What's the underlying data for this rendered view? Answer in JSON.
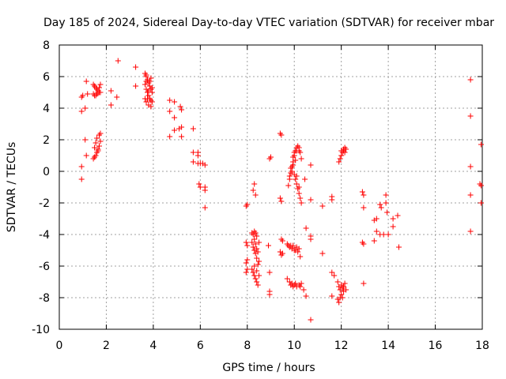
{
  "chart_data": {
    "type": "scatter",
    "title": "Day 185 of 2024, Sidereal Day-to-day VTEC variation (SDTVAR) for receiver mbar",
    "xlabel": "GPS time / hours",
    "ylabel": "SDTVAR / TECUs",
    "xlim": [
      0,
      18
    ],
    "ylim": [
      -10,
      8
    ],
    "xticks": [
      0,
      2,
      4,
      6,
      8,
      10,
      12,
      14,
      16,
      18
    ],
    "yticks": [
      -10,
      -8,
      -6,
      -4,
      -2,
      0,
      2,
      4,
      6,
      8
    ],
    "xtick_labels": [
      "0",
      "2",
      "4",
      "6",
      "8",
      "10",
      "12",
      "14",
      "16",
      "18"
    ],
    "ytick_labels": [
      "-10",
      "-8",
      "-6",
      "-4",
      "-2",
      "0",
      "2",
      "4",
      "6",
      "8"
    ],
    "grid": true,
    "marker": "+",
    "color": "#ff0000",
    "series": [
      {
        "name": "SDTVAR",
        "points": [
          [
            0.95,
            4.7
          ],
          [
            1.0,
            4.8
          ],
          [
            1.2,
            4.9
          ],
          [
            0.95,
            3.8
          ],
          [
            1.1,
            4.0
          ],
          [
            1.15,
            5.7
          ],
          [
            0.95,
            0.3
          ],
          [
            0.95,
            -0.5
          ],
          [
            1.1,
            2.0
          ],
          [
            1.15,
            1.0
          ],
          [
            1.45,
            5.5
          ],
          [
            1.5,
            5.4
          ],
          [
            1.55,
            5.3
          ],
          [
            1.6,
            5.2
          ],
          [
            1.65,
            5.1
          ],
          [
            1.7,
            5.0
          ],
          [
            1.75,
            5.0
          ],
          [
            1.45,
            4.9
          ],
          [
            1.5,
            4.8
          ],
          [
            1.55,
            4.8
          ],
          [
            1.6,
            4.9
          ],
          [
            1.65,
            5.0
          ],
          [
            1.7,
            5.3
          ],
          [
            1.75,
            5.5
          ],
          [
            1.45,
            0.8
          ],
          [
            1.5,
            0.9
          ],
          [
            1.55,
            1.0
          ],
          [
            1.6,
            1.2
          ],
          [
            1.65,
            1.4
          ],
          [
            1.7,
            1.6
          ],
          [
            1.75,
            1.9
          ],
          [
            1.5,
            1.5
          ],
          [
            1.55,
            1.8
          ],
          [
            1.6,
            2.1
          ],
          [
            1.7,
            2.3
          ],
          [
            1.75,
            2.4
          ],
          [
            1.65,
            1.3
          ],
          [
            2.2,
            5.1
          ],
          [
            2.2,
            4.2
          ],
          [
            2.45,
            4.7
          ],
          [
            2.5,
            7.0
          ],
          [
            3.25,
            5.4
          ],
          [
            3.25,
            6.6
          ],
          [
            3.65,
            6.2
          ],
          [
            3.7,
            6.0
          ],
          [
            3.75,
            5.8
          ],
          [
            3.8,
            5.6
          ],
          [
            3.85,
            5.4
          ],
          [
            3.9,
            5.2
          ],
          [
            3.95,
            5.0
          ],
          [
            3.65,
            5.5
          ],
          [
            3.7,
            5.2
          ],
          [
            3.75,
            5.0
          ],
          [
            3.8,
            4.8
          ],
          [
            3.85,
            4.6
          ],
          [
            3.9,
            4.5
          ],
          [
            3.95,
            4.4
          ],
          [
            3.7,
            4.4
          ],
          [
            3.75,
            4.6
          ],
          [
            3.8,
            5.1
          ],
          [
            3.85,
            5.7
          ],
          [
            3.9,
            5.9
          ],
          [
            3.95,
            5.3
          ],
          [
            3.7,
            6.1
          ],
          [
            3.65,
            4.6
          ],
          [
            3.8,
            4.2
          ],
          [
            3.9,
            4.1
          ],
          [
            3.7,
            5.7
          ],
          [
            4.7,
            4.5
          ],
          [
            4.9,
            4.4
          ],
          [
            4.7,
            3.8
          ],
          [
            4.9,
            3.4
          ],
          [
            4.7,
            2.2
          ],
          [
            4.9,
            2.6
          ],
          [
            5.1,
            2.7
          ],
          [
            5.2,
            2.8
          ],
          [
            5.2,
            2.2
          ],
          [
            5.15,
            4.1
          ],
          [
            5.2,
            3.9
          ],
          [
            5.7,
            2.7
          ],
          [
            5.7,
            1.2
          ],
          [
            5.7,
            0.6
          ],
          [
            5.9,
            1.0
          ],
          [
            5.9,
            0.5
          ],
          [
            6.0,
            0.5
          ],
          [
            6.1,
            0.5
          ],
          [
            6.2,
            0.4
          ],
          [
            5.9,
            1.2
          ],
          [
            5.95,
            -0.8
          ],
          [
            6.0,
            -1.0
          ],
          [
            6.2,
            -1.2
          ],
          [
            6.2,
            -1.0
          ],
          [
            6.2,
            -2.3
          ],
          [
            7.95,
            -2.2
          ],
          [
            8.0,
            -2.1
          ],
          [
            7.95,
            -4.5
          ],
          [
            8.0,
            -4.7
          ],
          [
            7.95,
            -5.8
          ],
          [
            8.0,
            -6.2
          ],
          [
            7.95,
            -6.4
          ],
          [
            8.0,
            -5.6
          ],
          [
            8.2,
            -3.9
          ],
          [
            8.25,
            -4.0
          ],
          [
            8.3,
            -3.8
          ],
          [
            8.35,
            -3.9
          ],
          [
            8.4,
            -4.1
          ],
          [
            8.2,
            -4.5
          ],
          [
            8.25,
            -4.8
          ],
          [
            8.3,
            -5.0
          ],
          [
            8.35,
            -5.2
          ],
          [
            8.4,
            -5.5
          ],
          [
            8.45,
            -5.9
          ],
          [
            8.2,
            -6.2
          ],
          [
            8.25,
            -6.4
          ],
          [
            8.3,
            -6.6
          ],
          [
            8.35,
            -6.8
          ],
          [
            8.4,
            -7.0
          ],
          [
            8.45,
            -7.2
          ],
          [
            8.3,
            -4.3
          ],
          [
            8.35,
            -4.6
          ],
          [
            8.4,
            -4.9
          ],
          [
            8.45,
            -5.1
          ],
          [
            8.3,
            -6.0
          ],
          [
            8.4,
            -6.3
          ],
          [
            8.5,
            -4.5
          ],
          [
            8.5,
            -5.7
          ],
          [
            8.5,
            -6.6
          ],
          [
            8.25,
            -1.2
          ],
          [
            8.3,
            -0.8
          ],
          [
            8.35,
            -1.5
          ],
          [
            8.9,
            -4.7
          ],
          [
            8.95,
            -6.4
          ],
          [
            8.95,
            -7.6
          ],
          [
            8.95,
            -7.8
          ],
          [
            8.95,
            0.8
          ],
          [
            9.0,
            0.9
          ],
          [
            9.4,
            2.4
          ],
          [
            9.45,
            2.3
          ],
          [
            9.4,
            -1.7
          ],
          [
            9.45,
            -1.9
          ],
          [
            9.45,
            -4.3
          ],
          [
            9.5,
            -4.4
          ],
          [
            9.4,
            -5.1
          ],
          [
            9.5,
            -5.2
          ],
          [
            9.45,
            -5.3
          ],
          [
            9.7,
            -4.6
          ],
          [
            9.8,
            -4.8
          ],
          [
            9.9,
            -4.9
          ],
          [
            10.0,
            -5.0
          ],
          [
            10.1,
            -4.8
          ],
          [
            10.2,
            -4.9
          ],
          [
            9.75,
            -4.7
          ],
          [
            9.85,
            -4.7
          ],
          [
            9.95,
            -4.7
          ],
          [
            10.05,
            -5.0
          ],
          [
            10.15,
            -5.1
          ],
          [
            10.25,
            -5.4
          ],
          [
            9.7,
            -6.8
          ],
          [
            9.8,
            -7.0
          ],
          [
            9.9,
            -7.1
          ],
          [
            10.0,
            -7.2
          ],
          [
            10.1,
            -7.3
          ],
          [
            10.2,
            -7.2
          ],
          [
            10.3,
            -7.1
          ],
          [
            10.4,
            -7.5
          ],
          [
            9.85,
            -7.2
          ],
          [
            9.95,
            -7.3
          ],
          [
            10.05,
            -7.1
          ],
          [
            10.25,
            -7.3
          ],
          [
            9.75,
            -0.9
          ],
          [
            9.8,
            -0.5
          ],
          [
            9.85,
            -0.1
          ],
          [
            9.9,
            0.3
          ],
          [
            9.95,
            0.6
          ],
          [
            10.0,
            1.0
          ],
          [
            10.05,
            1.3
          ],
          [
            10.1,
            1.5
          ],
          [
            10.15,
            1.6
          ],
          [
            10.2,
            1.5
          ],
          [
            10.25,
            1.2
          ],
          [
            10.3,
            0.8
          ],
          [
            9.8,
            -0.3
          ],
          [
            9.85,
            0.2
          ],
          [
            9.95,
            0.9
          ],
          [
            10.0,
            1.2
          ],
          [
            10.1,
            1.3
          ],
          [
            10.2,
            1.3
          ],
          [
            9.9,
            0.0
          ],
          [
            10.0,
            -0.2
          ],
          [
            10.05,
            -0.5
          ],
          [
            10.1,
            -0.8
          ],
          [
            10.15,
            -1.1
          ],
          [
            10.2,
            -1.4
          ],
          [
            10.25,
            -1.7
          ],
          [
            10.3,
            -2.0
          ],
          [
            10.1,
            -0.3
          ],
          [
            10.2,
            -1.0
          ],
          [
            9.95,
            0.4
          ],
          [
            10.05,
            0.7
          ],
          [
            10.45,
            -0.5
          ],
          [
            10.5,
            -3.6
          ],
          [
            10.7,
            -1.8
          ],
          [
            10.7,
            0.4
          ],
          [
            10.7,
            -4.1
          ],
          [
            10.7,
            -4.3
          ],
          [
            10.7,
            -9.4
          ],
          [
            10.5,
            -7.9
          ],
          [
            11.2,
            -5.2
          ],
          [
            11.2,
            -2.2
          ],
          [
            11.6,
            -1.8
          ],
          [
            11.6,
            -1.6
          ],
          [
            11.6,
            -6.4
          ],
          [
            11.7,
            -6.6
          ],
          [
            11.6,
            -7.9
          ],
          [
            11.85,
            -7.0
          ],
          [
            11.9,
            -7.3
          ],
          [
            11.95,
            -7.5
          ],
          [
            12.0,
            -7.8
          ],
          [
            12.05,
            -8.0
          ],
          [
            12.1,
            -7.6
          ],
          [
            11.85,
            -8.1
          ],
          [
            11.9,
            -8.3
          ],
          [
            11.95,
            -8.0
          ],
          [
            12.0,
            -7.2
          ],
          [
            12.05,
            -7.4
          ],
          [
            12.1,
            -7.3
          ],
          [
            12.15,
            -7.1
          ],
          [
            12.2,
            -7.5
          ],
          [
            11.9,
            0.6
          ],
          [
            11.95,
            0.8
          ],
          [
            12.0,
            1.0
          ],
          [
            12.05,
            1.2
          ],
          [
            12.1,
            1.4
          ],
          [
            12.15,
            1.5
          ],
          [
            12.2,
            1.4
          ],
          [
            12.1,
            1.3
          ],
          [
            12.15,
            1.2
          ],
          [
            12.0,
            1.3
          ],
          [
            12.9,
            -1.3
          ],
          [
            12.95,
            -1.5
          ],
          [
            12.95,
            -2.3
          ],
          [
            12.9,
            -4.5
          ],
          [
            12.95,
            -4.6
          ],
          [
            12.95,
            -7.1
          ],
          [
            13.4,
            -3.1
          ],
          [
            13.5,
            -3.0
          ],
          [
            13.5,
            -3.8
          ],
          [
            13.4,
            -4.4
          ],
          [
            13.65,
            -2.1
          ],
          [
            13.7,
            -2.3
          ],
          [
            13.8,
            -4.0
          ],
          [
            13.65,
            -4.0
          ],
          [
            13.9,
            -1.5
          ],
          [
            13.9,
            -2.0
          ],
          [
            13.95,
            -2.6
          ],
          [
            14.0,
            -4.0
          ],
          [
            14.2,
            -3.0
          ],
          [
            14.2,
            -3.5
          ],
          [
            14.4,
            -2.8
          ],
          [
            14.45,
            -4.8
          ],
          [
            17.5,
            5.8
          ],
          [
            17.5,
            3.5
          ],
          [
            17.5,
            0.3
          ],
          [
            17.5,
            -1.5
          ],
          [
            17.5,
            -3.8
          ],
          [
            17.95,
            1.7
          ],
          [
            17.9,
            -0.8
          ],
          [
            17.95,
            -0.9
          ],
          [
            17.95,
            -2.0
          ]
        ]
      }
    ]
  }
}
